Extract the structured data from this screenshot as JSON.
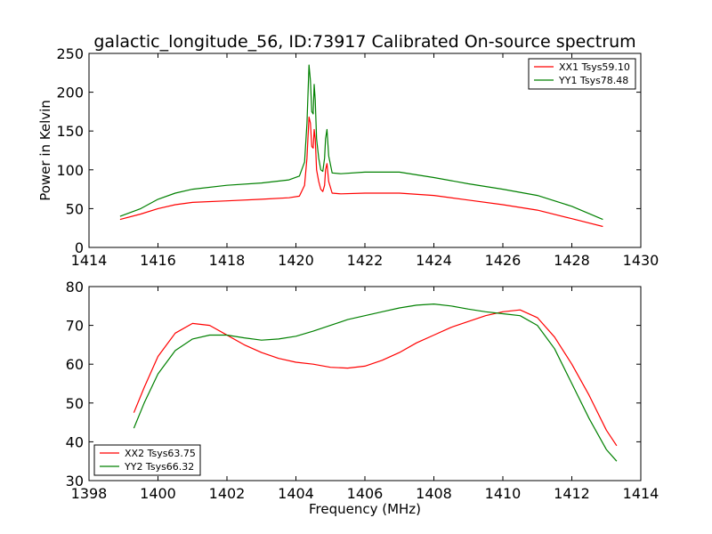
{
  "title": "galactic_longitude_56, ID:73917 Calibrated On-source spectrum",
  "colors": {
    "red": "#ff0000",
    "green": "#008000"
  },
  "chart_data": [
    {
      "type": "line",
      "ylabel": "Power in Kelvin",
      "xlabel": "",
      "xlim": [
        1414,
        1430
      ],
      "ylim": [
        0,
        250
      ],
      "xticks": [
        1414,
        1416,
        1418,
        1420,
        1422,
        1424,
        1426,
        1428,
        1430
      ],
      "yticks": [
        0,
        50,
        100,
        150,
        200,
        250
      ],
      "legend_position": "top-right",
      "series": [
        {
          "name": "XX1 Tsys59.10",
          "color": "#ff0000",
          "x": [
            1414.9,
            1415.5,
            1416.0,
            1416.5,
            1417.0,
            1418.0,
            1419.0,
            1419.8,
            1420.1,
            1420.25,
            1420.32,
            1420.38,
            1420.42,
            1420.46,
            1420.5,
            1420.53,
            1420.56,
            1420.6,
            1420.66,
            1420.72,
            1420.78,
            1420.83,
            1420.86,
            1420.9,
            1420.95,
            1421.05,
            1421.3,
            1422.0,
            1423.0,
            1424.0,
            1425.0,
            1426.0,
            1427.0,
            1428.0,
            1428.9
          ],
          "y": [
            36,
            43,
            50,
            55,
            58,
            60,
            62,
            64,
            66,
            80,
            115,
            168,
            160,
            130,
            128,
            152,
            140,
            100,
            85,
            75,
            72,
            80,
            100,
            108,
            85,
            70,
            69,
            70,
            70,
            67,
            61,
            55,
            48,
            37,
            27
          ]
        },
        {
          "name": "YY1 Tsys78.48",
          "color": "#008000",
          "x": [
            1414.9,
            1415.5,
            1416.0,
            1416.5,
            1417.0,
            1418.0,
            1419.0,
            1419.8,
            1420.1,
            1420.25,
            1420.32,
            1420.38,
            1420.42,
            1420.46,
            1420.5,
            1420.53,
            1420.56,
            1420.6,
            1420.66,
            1420.72,
            1420.78,
            1420.83,
            1420.86,
            1420.9,
            1420.95,
            1421.05,
            1421.3,
            1422.0,
            1423.0,
            1424.0,
            1425.0,
            1426.0,
            1427.0,
            1428.0,
            1428.9
          ],
          "y": [
            40,
            50,
            62,
            70,
            75,
            80,
            83,
            87,
            92,
            110,
            160,
            235,
            215,
            175,
            172,
            210,
            190,
            140,
            115,
            100,
            98,
            115,
            140,
            152,
            118,
            96,
            95,
            97,
            97,
            90,
            82,
            75,
            67,
            53,
            36
          ]
        }
      ]
    },
    {
      "type": "line",
      "ylabel": "",
      "xlabel": "Frequency (MHz)",
      "xlim": [
        1398,
        1414
      ],
      "ylim": [
        30,
        80
      ],
      "xticks": [
        1398,
        1400,
        1402,
        1404,
        1406,
        1408,
        1410,
        1412,
        1414
      ],
      "yticks": [
        30,
        40,
        50,
        60,
        70,
        80
      ],
      "legend_position": "bottom-left",
      "series": [
        {
          "name": "XX2 Tsys63.75",
          "color": "#ff0000",
          "x": [
            1399.3,
            1399.6,
            1400.0,
            1400.5,
            1401.0,
            1401.5,
            1402.0,
            1402.5,
            1403.0,
            1403.5,
            1404.0,
            1404.5,
            1405.0,
            1405.5,
            1406.0,
            1406.5,
            1407.0,
            1407.5,
            1408.0,
            1408.5,
            1409.0,
            1409.5,
            1410.0,
            1410.5,
            1411.0,
            1411.5,
            1412.0,
            1412.5,
            1413.0,
            1413.3
          ],
          "y": [
            47.5,
            54,
            62,
            68,
            70.5,
            70,
            67.5,
            65,
            63,
            61.5,
            60.5,
            60,
            59.2,
            59,
            59.5,
            61,
            63,
            65.5,
            67.5,
            69.5,
            71,
            72.5,
            73.5,
            74,
            72,
            67,
            60,
            52,
            43,
            39
          ]
        },
        {
          "name": "YY2 Tsys66.32",
          "color": "#008000",
          "x": [
            1399.3,
            1399.6,
            1400.0,
            1400.5,
            1401.0,
            1401.5,
            1402.0,
            1402.5,
            1403.0,
            1403.5,
            1404.0,
            1404.5,
            1405.0,
            1405.5,
            1406.0,
            1406.5,
            1407.0,
            1407.5,
            1408.0,
            1408.5,
            1409.0,
            1409.5,
            1410.0,
            1410.5,
            1411.0,
            1411.5,
            1412.0,
            1412.5,
            1413.0,
            1413.3
          ],
          "y": [
            43.5,
            50,
            57.5,
            63.5,
            66.5,
            67.5,
            67.5,
            66.8,
            66.2,
            66.5,
            67.2,
            68.5,
            70,
            71.5,
            72.5,
            73.5,
            74.5,
            75.2,
            75.5,
            75,
            74.2,
            73.5,
            73,
            72.5,
            70,
            64,
            55,
            46,
            38,
            35
          ]
        }
      ]
    }
  ]
}
